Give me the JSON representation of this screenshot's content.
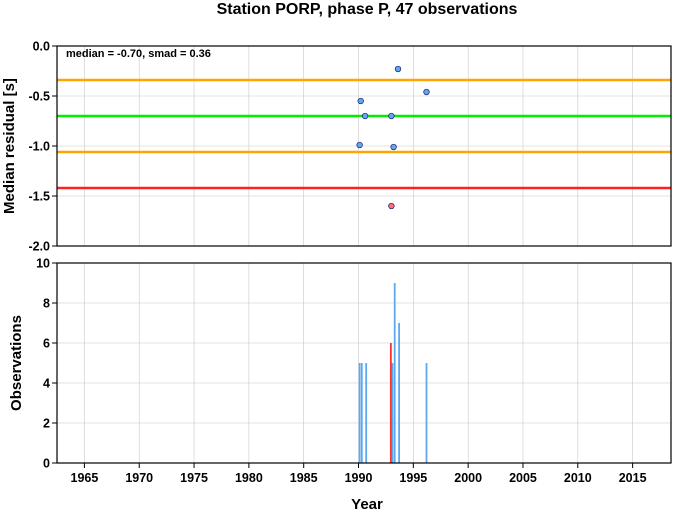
{
  "chart_data": [
    {
      "type": "scatter",
      "title": "Station PORP, phase P, 47 observations",
      "ylabel": "Median residual [s]",
      "annotation": "median = -0.70, smad = 0.36",
      "xlim": [
        1962.5,
        2018.5
      ],
      "ylim": [
        -2.0,
        0.0
      ],
      "y_ticks": [
        "0.0",
        "-0.5",
        "-1.0",
        "-1.5",
        "-2.0"
      ],
      "y_tick_values": [
        0.0,
        -0.5,
        -1.0,
        -1.5,
        -2.0
      ],
      "grid": true,
      "reference_lines": [
        {
          "y": -0.34,
          "color": "#ffa500"
        },
        {
          "y": -0.7,
          "color": "#00ee00"
        },
        {
          "y": -1.06,
          "color": "#ffa500"
        },
        {
          "y": -1.42,
          "color": "#ff2020"
        }
      ],
      "series": [
        {
          "color": "#5ea8f0",
          "points": [
            {
              "x": 1990.1,
              "y": -0.99
            },
            {
              "x": 1990.2,
              "y": -0.55
            },
            {
              "x": 1990.6,
              "y": -0.7
            },
            {
              "x": 1993.0,
              "y": -0.7
            },
            {
              "x": 1993.2,
              "y": -1.01
            },
            {
              "x": 1993.6,
              "y": -0.23
            },
            {
              "x": 1996.2,
              "y": -0.46
            }
          ]
        },
        {
          "color": "#ff7070",
          "points": [
            {
              "x": 1993.0,
              "y": -1.6
            }
          ]
        }
      ]
    },
    {
      "type": "bar",
      "xlabel": "Year",
      "ylabel": "Observations",
      "xlim": [
        1962.5,
        2018.5
      ],
      "ylim": [
        0,
        10
      ],
      "x_ticks": [
        "1965",
        "1970",
        "1975",
        "1980",
        "1985",
        "1990",
        "1995",
        "2000",
        "2005",
        "2010",
        "2015"
      ],
      "x_tick_values": [
        1965,
        1970,
        1975,
        1980,
        1985,
        1990,
        1995,
        2000,
        2005,
        2010,
        2015
      ],
      "y_ticks": [
        "0",
        "2",
        "4",
        "6",
        "8",
        "10"
      ],
      "y_tick_values": [
        0,
        2,
        4,
        6,
        8,
        10
      ],
      "grid": true,
      "series": [
        {
          "color": "#5ea8f0",
          "bars": [
            {
              "x": 1990.1,
              "y": 5
            },
            {
              "x": 1990.3,
              "y": 5
            },
            {
              "x": 1990.7,
              "y": 5
            },
            {
              "x": 1993.1,
              "y": 5
            },
            {
              "x": 1993.3,
              "y": 9
            },
            {
              "x": 1993.7,
              "y": 7
            },
            {
              "x": 1996.2,
              "y": 5
            }
          ]
        },
        {
          "color": "#ff3030",
          "bars": [
            {
              "x": 1992.95,
              "y": 6
            }
          ]
        }
      ]
    }
  ]
}
